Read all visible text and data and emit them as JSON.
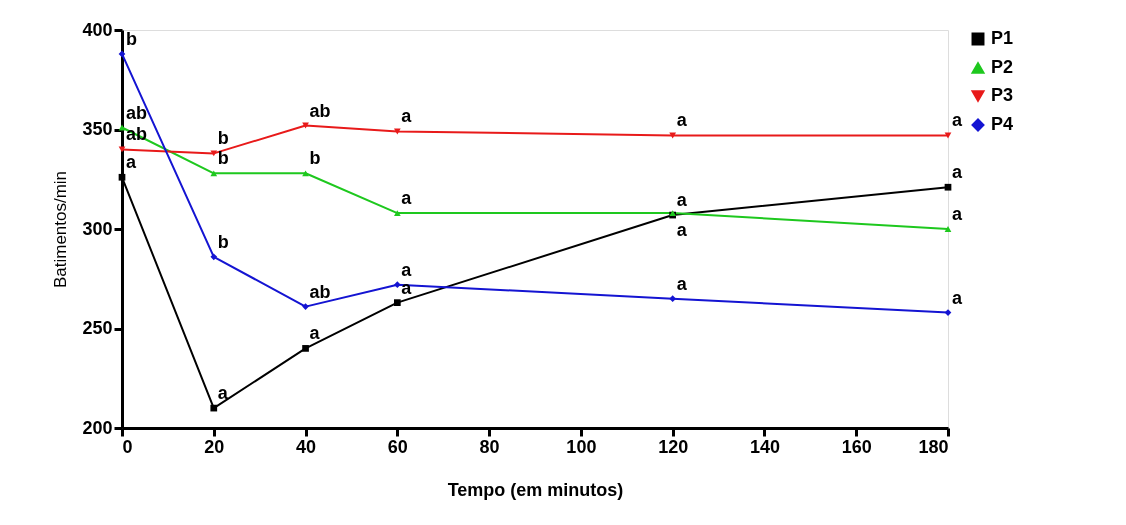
{
  "chart_data": {
    "type": "line",
    "xlabel": "Tempo (em minutos)",
    "ylabel": "Batimentos/min",
    "x": [
      0,
      20,
      40,
      60,
      120,
      180
    ],
    "xlim": [
      0,
      180
    ],
    "xticks": [
      0,
      20,
      40,
      60,
      80,
      100,
      120,
      140,
      160,
      180
    ],
    "ylim": [
      200,
      400
    ],
    "yticks": [
      200,
      250,
      300,
      350,
      400
    ],
    "grid": false,
    "legend": "top right",
    "series": [
      {
        "name": "P1",
        "color": "#000000",
        "marker": "square",
        "values": [
          326,
          210,
          240,
          263,
          307,
          321
        ]
      },
      {
        "name": "P2",
        "color": "#1ec81e",
        "marker": "triangle",
        "values": [
          351,
          328,
          328,
          308,
          308,
          300
        ]
      },
      {
        "name": "P3",
        "color": "#e81a1a",
        "marker": "triangle-down",
        "values": [
          340,
          338,
          352,
          349,
          347,
          347
        ]
      },
      {
        "name": "P4",
        "color": "#1414d2",
        "marker": "diamond",
        "values": [
          388,
          286,
          261,
          272,
          265,
          258
        ]
      }
    ],
    "annotations": [
      {
        "text": "b",
        "x": 0,
        "y": 388
      },
      {
        "text": "ab",
        "x": 0,
        "y": 351
      },
      {
        "text": "ab",
        "x": 0,
        "y": 340
      },
      {
        "text": "a",
        "x": 0,
        "y": 326
      },
      {
        "text": "b",
        "x": 20,
        "y": 338
      },
      {
        "text": "b",
        "x": 20,
        "y": 328
      },
      {
        "text": "b",
        "x": 20,
        "y": 286
      },
      {
        "text": "a",
        "x": 20,
        "y": 210
      },
      {
        "text": "ab",
        "x": 40,
        "y": 352
      },
      {
        "text": "b",
        "x": 40,
        "y": 328
      },
      {
        "text": "ab",
        "x": 40,
        "y": 261
      },
      {
        "text": "a",
        "x": 40,
        "y": 240
      },
      {
        "text": "a",
        "x": 60,
        "y": 349
      },
      {
        "text": "a",
        "x": 60,
        "y": 308
      },
      {
        "text": "a",
        "x": 60,
        "y": 272
      },
      {
        "text": "a",
        "x": 60,
        "y": 263
      },
      {
        "text": "a",
        "x": 120,
        "y": 347
      },
      {
        "text": "a",
        "x": 120,
        "y": 307
      },
      {
        "text": "a",
        "x": 120,
        "y": 308
      },
      {
        "text": "a",
        "x": 120,
        "y": 265
      },
      {
        "text": "a",
        "x": 180,
        "y": 347
      },
      {
        "text": "a",
        "x": 180,
        "y": 321
      },
      {
        "text": "a",
        "x": 180,
        "y": 300
      },
      {
        "text": "a",
        "x": 180,
        "y": 258
      }
    ]
  }
}
